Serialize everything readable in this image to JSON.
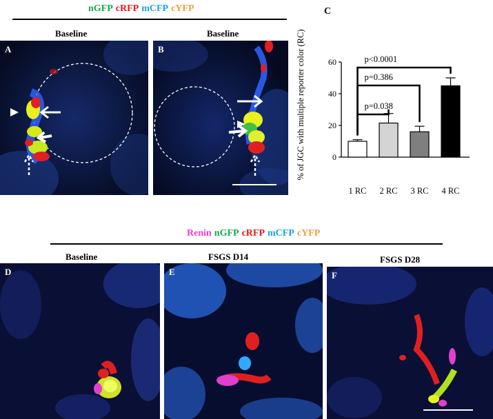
{
  "top_legend": [
    {
      "text": "nGFP",
      "color": "#1aa64a"
    },
    {
      "text": "cRFP",
      "color": "#e01b1b"
    },
    {
      "text": "mCFP",
      "color": "#1aa3de"
    },
    {
      "text": "cYFP",
      "color": "#f0a040"
    }
  ],
  "bottom_legend": [
    {
      "text": "Renin",
      "color": "#ee3fd0"
    },
    {
      "text": "nGFP",
      "color": "#1aa64a"
    },
    {
      "text": "cRFP",
      "color": "#e01b1b"
    },
    {
      "text": "mCFP",
      "color": "#1aa3de"
    },
    {
      "text": "cYFP",
      "color": "#f0a040"
    }
  ],
  "panels": {
    "a": {
      "label": "A",
      "title": "Baseline"
    },
    "b": {
      "label": "B",
      "title": "Baseline"
    },
    "d": {
      "label": "D",
      "title": "Baseline"
    },
    "e": {
      "label": "E",
      "title": "FSGS D14"
    },
    "f": {
      "label": "F",
      "title": "FSGS D28"
    }
  },
  "chart_data": {
    "type": "bar",
    "panel_label": "C",
    "ylabel": "% of JGC with multiple reporter color (RC)",
    "ylim": [
      0,
      60
    ],
    "yticks": [
      0,
      20,
      40,
      60
    ],
    "categories": [
      "1 RC",
      "2 RC",
      "3 RC",
      "4 RC"
    ],
    "values": [
      10,
      21.5,
      16,
      45
    ],
    "errors": [
      1,
      6,
      3.5,
      5
    ],
    "bar_colors": [
      "#ffffff",
      "#d4d4d4",
      "#7f7f7f",
      "#000000"
    ],
    "comparisons": [
      {
        "from": 0,
        "to": 1,
        "label": "p=0.038"
      },
      {
        "from": 0,
        "to": 2,
        "label": "p=0.386"
      },
      {
        "from": 0,
        "to": 3,
        "label": "p<0.0001"
      }
    ]
  }
}
